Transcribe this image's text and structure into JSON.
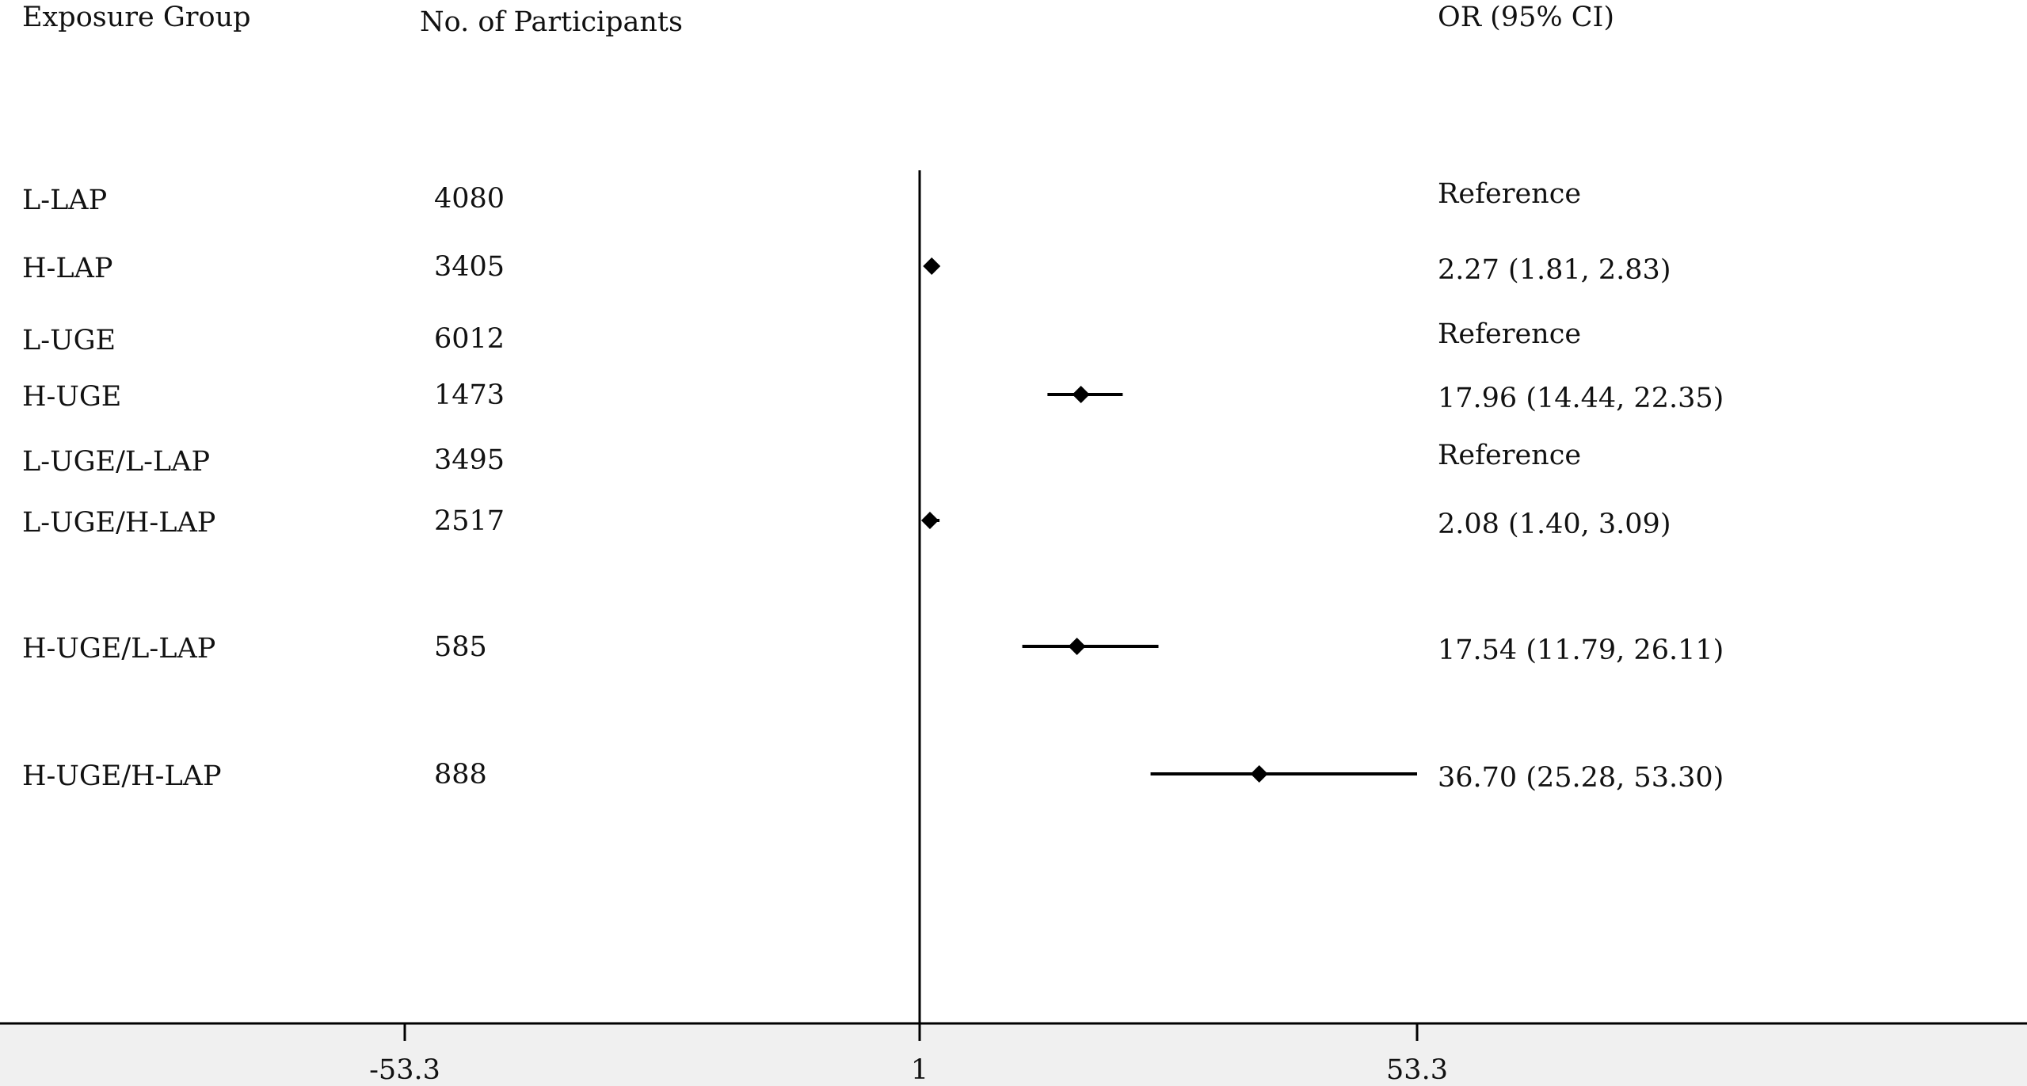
{
  "headers": {
    "group": "Exposure Group",
    "participants": "No. of Participants",
    "or": "OR (95% CI)"
  },
  "chart_data": {
    "type": "forest",
    "title": "",
    "xlabel": "",
    "ylabel": "",
    "reference_line": 1,
    "xlim": [
      -53.3,
      53.3
    ],
    "x_ticks": [
      {
        "value": -53.3,
        "label": "-53.3"
      },
      {
        "value": 1,
        "label": "1"
      },
      {
        "value": 53.3,
        "label": "53.3"
      }
    ],
    "rows": [
      {
        "group": "L-LAP",
        "n": "4080",
        "or_text": "Reference",
        "or": null,
        "lo": null,
        "hi": null
      },
      {
        "group": "H-LAP",
        "n": "3405",
        "or_text": "2.27 (1.81, 2.83)",
        "or": 2.27,
        "lo": 1.81,
        "hi": 2.83
      },
      {
        "group": "L-UGE",
        "n": "6012",
        "or_text": "Reference",
        "or": null,
        "lo": null,
        "hi": null
      },
      {
        "group": "H-UGE",
        "n": "1473",
        "or_text": "17.96 (14.44, 22.35)",
        "or": 17.96,
        "lo": 14.44,
        "hi": 22.35
      },
      {
        "group": "L-UGE/L-LAP",
        "n": "3495",
        "or_text": "Reference",
        "or": null,
        "lo": null,
        "hi": null
      },
      {
        "group": "L-UGE/H-LAP",
        "n": "2517",
        "or_text": "2.08 (1.40, 3.09)",
        "or": 2.08,
        "lo": 1.4,
        "hi": 3.09
      },
      {
        "group": "H-UGE/L-LAP",
        "n": "585",
        "or_text": "17.54 (11.79, 26.11)",
        "or": 17.54,
        "lo": 11.79,
        "hi": 26.11
      },
      {
        "group": "H-UGE/H-LAP",
        "n": "888",
        "or_text": "36.70 (25.28, 53.30)",
        "or": 36.7,
        "lo": 25.28,
        "hi": 53.3
      }
    ]
  }
}
